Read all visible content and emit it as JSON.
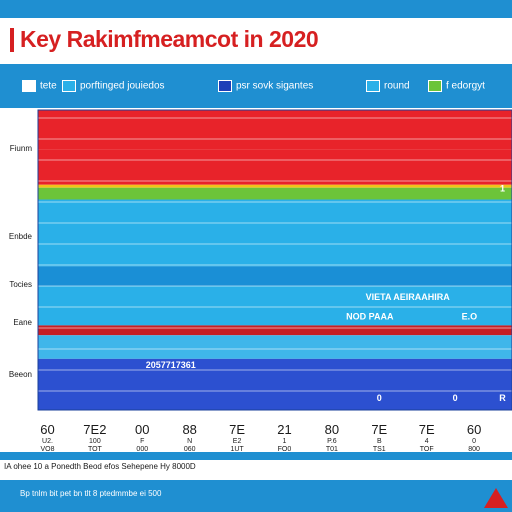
{
  "title": "Key Rakimfmeamcot in 2020",
  "legend": [
    {
      "label": "tete",
      "color": "#ffffff"
    },
    {
      "label": "porftinged jouiedos",
      "color": "#2ab0e8"
    },
    {
      "label": "psr sovk sigantes",
      "color": "#1e3fb8"
    },
    {
      "label": "round",
      "color": "#2ab0e8"
    },
    {
      "label": "f edorgyt",
      "color": "#6cc43a"
    }
  ],
  "row_labels": [
    "Fiunm",
    "Enbde",
    "Tocies",
    "Eane",
    "Beeon"
  ],
  "footnotes": [
    "IA ohee 10 a Ponedth Beod efos Sehepene Hy 8000D",
    "Bp tnlm bit pet bn tlt 8 ptedmmbe ei 500"
  ],
  "chart_data": {
    "type": "bar",
    "title": "Key Rakimfmeamcot in 2020",
    "orientation": "horizontal",
    "bands": [
      {
        "color": "#e8232a",
        "height": 2.0
      },
      {
        "color": "#e8232a",
        "height": 1.8
      },
      {
        "color": "#f0c419",
        "height": 0.15
      },
      {
        "color": "#6cc43a",
        "height": 0.6
      },
      {
        "color": "#2ab0e8",
        "height": 3.4
      },
      {
        "color": "#1a8fd6",
        "height": 1.0
      },
      {
        "color": "#2ab0e8",
        "height": 2.0
      },
      {
        "color": "#c81e24",
        "height": 0.5
      },
      {
        "color": "#3fb6ea",
        "height": 1.2
      },
      {
        "color": "#2c50d0",
        "height": 2.6
      }
    ],
    "annotations": [
      {
        "text": "VIETA AEIRAAHIRA",
        "band": 6,
        "offset": 0.25,
        "pos": 0.78
      },
      {
        "text": "NOD PAAA",
        "band": 6,
        "offset": 0.75,
        "pos": 0.7
      },
      {
        "text": "E.O",
        "band": 6,
        "offset": 0.75,
        "pos": 0.91
      },
      {
        "text": "2057717361",
        "band": 9,
        "offset": 0.1,
        "pos": 0.28
      },
      {
        "text": "0",
        "band": 9,
        "offset": 0.75,
        "pos": 0.72
      },
      {
        "text": "0",
        "band": 9,
        "offset": 0.75,
        "pos": 0.88
      },
      {
        "text": "R",
        "band": 9,
        "offset": 0.75,
        "pos": 0.98
      },
      {
        "text": "1",
        "band": 3,
        "offset": 0.0,
        "pos": 0.98
      }
    ],
    "categories": [
      "60",
      "7E2",
      "00",
      "88",
      "7E",
      "21",
      "80",
      "7E",
      "7E",
      "60"
    ],
    "category_sublabels": [
      "U2.",
      "100",
      "F",
      "N",
      "E2",
      "1",
      "P.6",
      "B",
      "4",
      "0"
    ],
    "category_values": [
      "VO8",
      "TOT",
      "000",
      "060",
      "1UT",
      "FO0",
      "T01",
      "TS1",
      "TOF",
      "800"
    ]
  }
}
